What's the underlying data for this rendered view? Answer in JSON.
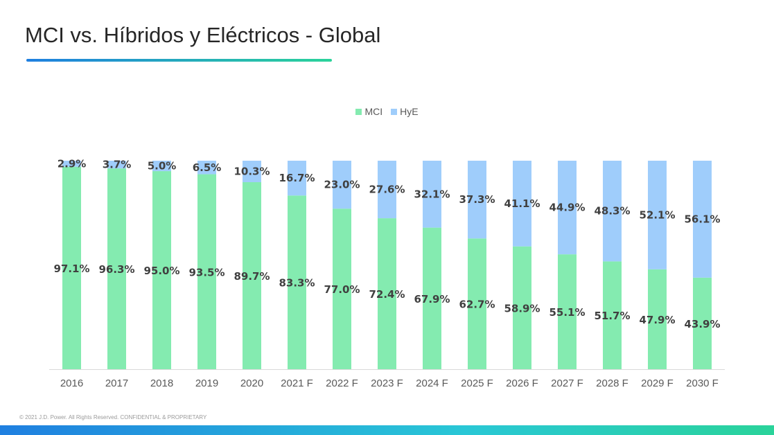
{
  "slide": {
    "title": "MCI vs. Híbridos y Eléctricos - Global",
    "footer": "© 2021 J.D. Power. All Rights Reserved. CONFIDENTIAL & PROPRIETARY"
  },
  "colors": {
    "MCI": "#84ebb0",
    "HyE": "#9fcdfb",
    "accent_start": "#1f7fe0",
    "accent_end": "#2ad39a"
  },
  "chart_data": {
    "type": "bar",
    "stacked": true,
    "title": "",
    "xlabel": "",
    "ylabel": "",
    "ylim": [
      0,
      100
    ],
    "grid": false,
    "legend_position": "top-center",
    "categories": [
      "2016",
      "2017",
      "2018",
      "2019",
      "2020",
      "2021 F",
      "2022 F",
      "2023 F",
      "2024 F",
      "2025 F",
      "2026 F",
      "2027 F",
      "2028 F",
      "2029 F",
      "2030 F"
    ],
    "series": [
      {
        "name": "MCI",
        "values": [
          97.1,
          96.3,
          95.0,
          93.5,
          89.7,
          83.3,
          77.0,
          72.4,
          67.9,
          62.7,
          58.9,
          55.1,
          51.7,
          47.9,
          43.9
        ],
        "labels": [
          "97.1%",
          "96.3%",
          "95.0%",
          "93.5%",
          "89.7%",
          "83.3%",
          "77.0%",
          "72.4%",
          "67.9%",
          "62.7%",
          "58.9%",
          "55.1%",
          "51.7%",
          "47.9%",
          "43.9%"
        ]
      },
      {
        "name": "HyE",
        "values": [
          2.9,
          3.7,
          5.0,
          6.5,
          10.3,
          16.7,
          23.0,
          27.6,
          32.1,
          37.3,
          41.1,
          44.9,
          48.3,
          52.1,
          56.1
        ],
        "labels": [
          "2.9%",
          "3.7%",
          "5.0%",
          "6.5%",
          "10.3%",
          "16.7%",
          "23.0%",
          "27.6%",
          "32.1%",
          "37.3%",
          "41.1%",
          "44.9%",
          "48.3%",
          "52.1%",
          "56.1%"
        ]
      }
    ]
  }
}
